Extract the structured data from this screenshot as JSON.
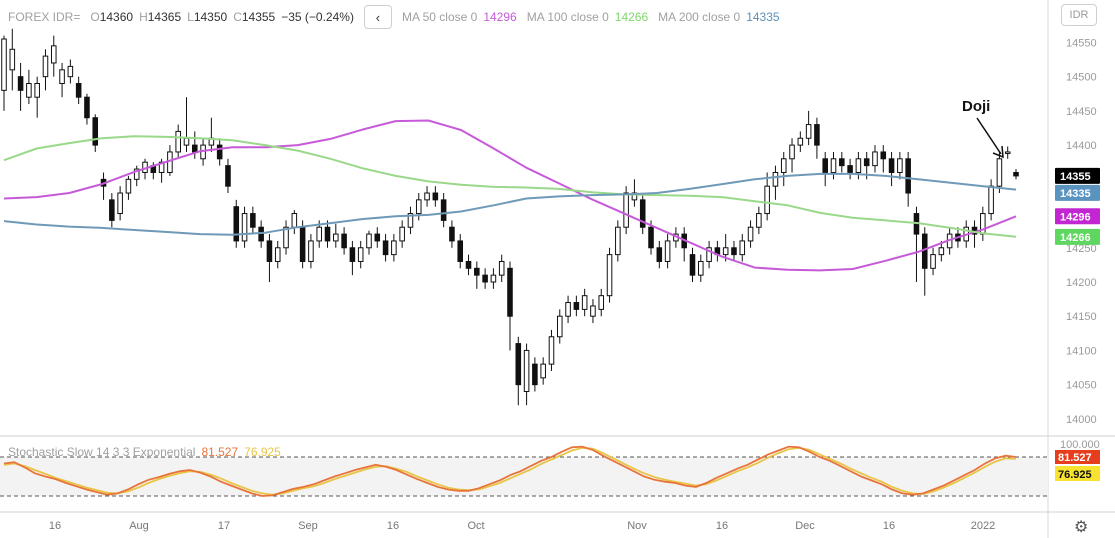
{
  "legend": {
    "symbol": "FOREX IDR=",
    "open_label": "O",
    "open": "14360",
    "high_label": "H",
    "high": "14365",
    "low_label": "L",
    "low": "14350",
    "close_label": "C",
    "close": "14355",
    "change": "−35 (−0.24%)",
    "collapse_glyph": "‹",
    "ma50_label": "MA 50 close 0",
    "ma50_value": "14296",
    "ma100_label": "MA 100 close 0",
    "ma100_value": "14266",
    "ma200_label": "MA 200 close 0",
    "ma200_value": "14335"
  },
  "currency_button": "IDR",
  "settings_icon": "gear-icon",
  "stochastic_legend": {
    "label": "Stochastic Slow 14 3 3 Exponential",
    "k": "81.527",
    "d": "76.925"
  },
  "colors": {
    "ma50": "#c65ad9",
    "ma100": "#9ad88a",
    "ma200": "#6e9ab8",
    "stoch_k": "#e8743b",
    "stoch_d": "#e8c547",
    "last_price_bg": "#000000",
    "ma200_bg": "#5b93bf",
    "ma50_bg": "#c226d1",
    "ma100_bg": "#5fd65f",
    "stoch_k_bg": "#e63e1c",
    "stoch_d_bg": "#f7e22f"
  },
  "chart_data": [
    {
      "type": "candlestick",
      "y_ticks": [
        14000,
        14050,
        14100,
        14150,
        14200,
        14250,
        14300,
        14350,
        14400,
        14450,
        14500,
        14550
      ],
      "ylim": [
        13975,
        14612
      ],
      "x_ticks": [
        "16",
        "Aug",
        "17",
        "Sep",
        "16",
        "Oct",
        "Nov",
        "16",
        "Dec",
        "16",
        "2022"
      ],
      "price_labels": {
        "last": 14355,
        "ma200": 14335,
        "ma50": 14296,
        "ma100": 14266
      },
      "series": [
        {
          "name": "MA 50 close 0",
          "values": [
            14322,
            14324,
            14330,
            14343,
            14361,
            14376,
            14391,
            14397,
            14397,
            14400,
            14409,
            14423,
            14435,
            14436,
            14422,
            14395,
            14367,
            14344,
            14321,
            14300,
            14279,
            14258,
            14237,
            14221,
            14218,
            14217,
            14219,
            14231,
            14244,
            14262,
            14277,
            14296
          ]
        },
        {
          "name": "MA 100 close 0",
          "values": [
            14378,
            14395,
            14403,
            14410,
            14413,
            14412,
            14410,
            14407,
            14400,
            14392,
            14380,
            14366,
            14355,
            14347,
            14342,
            14339,
            14338,
            14336,
            14331,
            14328,
            14327,
            14326,
            14324,
            14318,
            14312,
            14301,
            14294,
            14290,
            14286,
            14279,
            14271,
            14266
          ]
        },
        {
          "name": "MA 200 close 0",
          "values": [
            14289,
            14284,
            14281,
            14279,
            14276,
            14273,
            14270,
            14269,
            14272,
            14280,
            14286,
            14292,
            14296,
            14298,
            14303,
            14312,
            14322,
            14325,
            14327,
            14328,
            14330,
            14336,
            14343,
            14350,
            14355,
            14358,
            14358,
            14355,
            14350,
            14345,
            14340,
            14335
          ]
        }
      ],
      "annotations": [
        {
          "text": "Doji"
        }
      ],
      "candles": [
        [
          14480,
          14555,
          14450,
          14560
        ],
        [
          14510,
          14540,
          14480,
          14570
        ],
        [
          14500,
          14480,
          14450,
          14520
        ],
        [
          14470,
          14490,
          14460,
          14510
        ],
        [
          14470,
          14490,
          14440,
          14500
        ],
        [
          14500,
          14530,
          14480,
          14540
        ],
        [
          14520,
          14545,
          14500,
          14560
        ],
        [
          14490,
          14510,
          14470,
          14520
        ],
        [
          14500,
          14515,
          14490,
          14525
        ],
        [
          14490,
          14470,
          14460,
          14500
        ],
        [
          14470,
          14440,
          14430,
          14475
        ],
        [
          14440,
          14400,
          14390,
          14445
        ],
        [
          14350,
          14340,
          14320,
          14360
        ],
        [
          14320,
          14290,
          14280,
          14330
        ],
        [
          14300,
          14330,
          14290,
          14340
        ],
        [
          14330,
          14350,
          14320,
          14355
        ],
        [
          14350,
          14365,
          14340,
          14370
        ],
        [
          14360,
          14375,
          14350,
          14380
        ],
        [
          14370,
          14360,
          14350,
          14375
        ],
        [
          14360,
          14375,
          14345,
          14380
        ],
        [
          14360,
          14390,
          14355,
          14400
        ],
        [
          14390,
          14420,
          14380,
          14430
        ],
        [
          14400,
          14410,
          14390,
          14470
        ],
        [
          14400,
          14390,
          14380,
          14420
        ],
        [
          14380,
          14400,
          14370,
          14410
        ],
        [
          14400,
          14410,
          14390,
          14440
        ],
        [
          14400,
          14380,
          14370,
          14410
        ],
        [
          14370,
          14340,
          14330,
          14380
        ],
        [
          14310,
          14260,
          14250,
          14320
        ],
        [
          14260,
          14300,
          14250,
          14310
        ],
        [
          14300,
          14280,
          14270,
          14310
        ],
        [
          14280,
          14260,
          14250,
          14290
        ],
        [
          14260,
          14230,
          14200,
          14270
        ],
        [
          14230,
          14250,
          14220,
          14260
        ],
        [
          14250,
          14280,
          14240,
          14290
        ],
        [
          14280,
          14300,
          14270,
          14305
        ],
        [
          14280,
          14230,
          14220,
          14290
        ],
        [
          14230,
          14260,
          14220,
          14270
        ],
        [
          14260,
          14280,
          14250,
          14290
        ],
        [
          14280,
          14260,
          14250,
          14290
        ],
        [
          14260,
          14270,
          14250,
          14285
        ],
        [
          14270,
          14250,
          14240,
          14280
        ],
        [
          14250,
          14230,
          14210,
          14260
        ],
        [
          14230,
          14250,
          14220,
          14260
        ],
        [
          14250,
          14270,
          14240,
          14275
        ],
        [
          14270,
          14260,
          14250,
          14280
        ],
        [
          14260,
          14240,
          14230,
          14270
        ],
        [
          14240,
          14260,
          14230,
          14270
        ],
        [
          14260,
          14280,
          14250,
          14290
        ],
        [
          14280,
          14300,
          14270,
          14310
        ],
        [
          14300,
          14320,
          14290,
          14330
        ],
        [
          14320,
          14330,
          14310,
          14340
        ],
        [
          14330,
          14320,
          14310,
          14340
        ],
        [
          14320,
          14290,
          14280,
          14330
        ],
        [
          14280,
          14260,
          14250,
          14290
        ],
        [
          14260,
          14230,
          14220,
          14270
        ],
        [
          14230,
          14220,
          14210,
          14240
        ],
        [
          14220,
          14210,
          14190,
          14230
        ],
        [
          14210,
          14200,
          14190,
          14220
        ],
        [
          14200,
          14210,
          14190,
          14220
        ],
        [
          14210,
          14230,
          14200,
          14240
        ],
        [
          14220,
          14150,
          14100,
          14230
        ],
        [
          14110,
          14050,
          14020,
          14120
        ],
        [
          14040,
          14100,
          14020,
          14110
        ],
        [
          14080,
          14050,
          14040,
          14090
        ],
        [
          14060,
          14080,
          14050,
          14090
        ],
        [
          14080,
          14120,
          14070,
          14130
        ],
        [
          14120,
          14150,
          14110,
          14160
        ],
        [
          14150,
          14170,
          14140,
          14180
        ],
        [
          14170,
          14160,
          14150,
          14180
        ],
        [
          14160,
          14180,
          14150,
          14190
        ],
        [
          14150,
          14165,
          14140,
          14175
        ],
        [
          14160,
          14180,
          14150,
          14190
        ],
        [
          14180,
          14240,
          14170,
          14250
        ],
        [
          14240,
          14280,
          14230,
          14290
        ],
        [
          14280,
          14330,
          14270,
          14340
        ],
        [
          14320,
          14330,
          14310,
          14350
        ],
        [
          14320,
          14280,
          14270,
          14330
        ],
        [
          14280,
          14250,
          14240,
          14290
        ],
        [
          14250,
          14230,
          14220,
          14260
        ],
        [
          14230,
          14260,
          14220,
          14270
        ],
        [
          14260,
          14270,
          14250,
          14280
        ],
        [
          14270,
          14250,
          14230,
          14280
        ],
        [
          14240,
          14210,
          14200,
          14250
        ],
        [
          14210,
          14230,
          14200,
          14240
        ],
        [
          14230,
          14250,
          14220,
          14260
        ],
        [
          14250,
          14240,
          14230,
          14260
        ],
        [
          14240,
          14250,
          14230,
          14270
        ],
        [
          14250,
          14240,
          14230,
          14260
        ],
        [
          14240,
          14260,
          14230,
          14270
        ],
        [
          14260,
          14280,
          14250,
          14290
        ],
        [
          14280,
          14300,
          14270,
          14310
        ],
        [
          14300,
          14340,
          14290,
          14360
        ],
        [
          14340,
          14360,
          14320,
          14370
        ],
        [
          14360,
          14380,
          14340,
          14390
        ],
        [
          14380,
          14400,
          14360,
          14410
        ],
        [
          14400,
          14410,
          14390,
          14420
        ],
        [
          14410,
          14430,
          14400,
          14450
        ],
        [
          14430,
          14400,
          14380,
          14440
        ],
        [
          14380,
          14360,
          14340,
          14390
        ],
        [
          14360,
          14380,
          14350,
          14390
        ],
        [
          14380,
          14370,
          14360,
          14390
        ],
        [
          14370,
          14360,
          14350,
          14380
        ],
        [
          14360,
          14380,
          14350,
          14390
        ],
        [
          14380,
          14370,
          14350,
          14390
        ],
        [
          14370,
          14390,
          14360,
          14400
        ],
        [
          14390,
          14380,
          14360,
          14400
        ],
        [
          14380,
          14360,
          14340,
          14390
        ],
        [
          14360,
          14380,
          14350,
          14390
        ],
        [
          14380,
          14330,
          14310,
          14390
        ],
        [
          14300,
          14270,
          14200,
          14310
        ],
        [
          14270,
          14220,
          14180,
          14280
        ],
        [
          14220,
          14240,
          14210,
          14250
        ],
        [
          14240,
          14250,
          14230,
          14260
        ],
        [
          14250,
          14270,
          14240,
          14280
        ],
        [
          14270,
          14260,
          14250,
          14280
        ],
        [
          14260,
          14280,
          14250,
          14290
        ],
        [
          14280,
          14270,
          14250,
          14290
        ],
        [
          14270,
          14300,
          14260,
          14310
        ],
        [
          14300,
          14340,
          14290,
          14350
        ],
        [
          14340,
          14380,
          14330,
          14390
        ],
        [
          14390,
          14390,
          14380,
          14398
        ],
        [
          14360,
          14355,
          14350,
          14365
        ]
      ]
    },
    {
      "type": "line",
      "series": [
        {
          "name": "81.527",
          "values": [
            70,
            72,
            64,
            55,
            50,
            46,
            40,
            35,
            30,
            26,
            22,
            24,
            30,
            38,
            45,
            49,
            54,
            58,
            60,
            56,
            50,
            42,
            36,
            30,
            24,
            20,
            21,
            26,
            31,
            34,
            38,
            44,
            50,
            55,
            60,
            64,
            68,
            65,
            60,
            53,
            46,
            40,
            34,
            30,
            28,
            28,
            32,
            38,
            44,
            52,
            58,
            66,
            74,
            80,
            88,
            95,
            96,
            91,
            82,
            74,
            66,
            58,
            50,
            45,
            42,
            40,
            36,
            34,
            40,
            48,
            55,
            62,
            68,
            76,
            84,
            90,
            96,
            95,
            88,
            80,
            74,
            66,
            58,
            50,
            44,
            38,
            30,
            24,
            22,
            24,
            30,
            36,
            44,
            52,
            60,
            70,
            78,
            82,
            80
          ]
        },
        {
          "name": "76.925",
          "values": [
            68,
            70,
            66,
            60,
            54,
            48,
            43,
            38,
            33,
            29,
            25,
            24,
            27,
            33,
            40,
            46,
            51,
            55,
            58,
            57,
            53,
            47,
            40,
            34,
            28,
            24,
            22,
            24,
            28,
            32,
            35,
            40,
            46,
            51,
            56,
            61,
            65,
            66,
            62,
            57,
            50,
            44,
            38,
            33,
            30,
            29,
            30,
            35,
            40,
            47,
            54,
            61,
            69,
            76,
            83,
            90,
            94,
            93,
            86,
            78,
            70,
            62,
            55,
            49,
            45,
            42,
            39,
            36,
            38,
            44,
            51,
            58,
            64,
            71,
            79,
            86,
            92,
            94,
            91,
            84,
            77,
            70,
            62,
            55,
            48,
            42,
            34,
            28,
            24,
            23,
            27,
            33,
            40,
            48,
            56,
            65,
            73,
            78,
            77
          ]
        }
      ],
      "ylim": [
        0,
        100
      ],
      "y_ticks": [
        100.0
      ],
      "band": [
        20,
        80
      ]
    }
  ]
}
